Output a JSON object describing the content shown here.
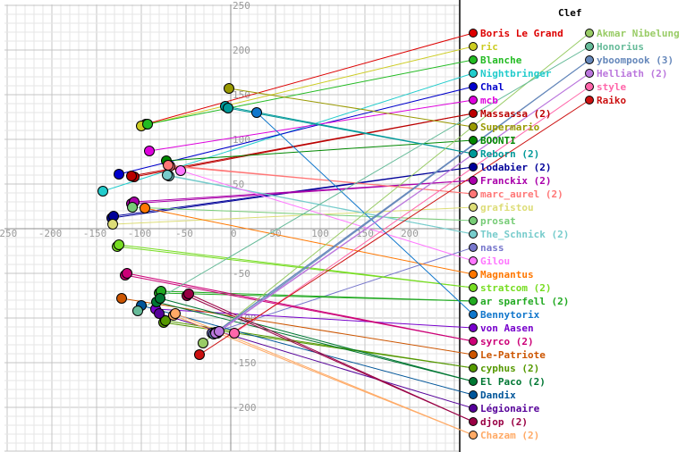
{
  "chart_data": {
    "type": "scatter",
    "xlim": [
      -250,
      250
    ],
    "ylim": [
      -250,
      250
    ],
    "grid": true,
    "legend_title": "Clef",
    "legend_position": "right",
    "x_ticks": [
      -250,
      -200,
      -150,
      -100,
      -50,
      0,
      50,
      100,
      150,
      200
    ],
    "y_ticks": [
      250,
      200,
      150,
      100,
      50,
      -50,
      -100,
      -150,
      -200
    ],
    "series": [
      {
        "name": "Boris Le Grand",
        "color": "#dd0000",
        "points": [
          [
            -95,
            117
          ]
        ]
      },
      {
        "name": "ric",
        "color": "#cccc22",
        "points": [
          [
            -100,
            115
          ]
        ]
      },
      {
        "name": "Blanche",
        "color": "#22bb22",
        "points": [
          [
            -93,
            117
          ]
        ]
      },
      {
        "name": "Nightbringer",
        "color": "#22cccc",
        "points": [
          [
            -143,
            42
          ]
        ]
      },
      {
        "name": "Chal",
        "color": "#0000cc",
        "points": [
          [
            -125,
            61
          ]
        ]
      },
      {
        "name": "mcb",
        "color": "#dd00dd",
        "points": [
          [
            -91,
            87
          ]
        ]
      },
      {
        "name": "Massassa (2)",
        "color": "#bb0000",
        "points": [
          [
            -108,
            58
          ],
          [
            -111,
            59
          ]
        ]
      },
      {
        "name": "Supermario",
        "color": "#999900",
        "points": [
          [
            -2,
            157
          ]
        ]
      },
      {
        "name": "BOONTI",
        "color": "#008800",
        "points": [
          [
            -72,
            76
          ]
        ]
      },
      {
        "name": "Reborn (2)",
        "color": "#009999",
        "points": [
          [
            -6,
            137
          ],
          [
            -3,
            135
          ]
        ]
      },
      {
        "name": "lodabier (2)",
        "color": "#000099",
        "points": [
          [
            -133,
            12
          ],
          [
            -131,
            14
          ]
        ]
      },
      {
        "name": "Franckix (2)",
        "color": "#aa00aa",
        "points": [
          [
            -111,
            28
          ],
          [
            -108,
            30
          ]
        ]
      },
      {
        "name": "marc_aurel (2)",
        "color": "#ff7777",
        "points": [
          [
            -68,
            70
          ],
          [
            -70,
            71
          ]
        ]
      },
      {
        "name": "grafistou",
        "color": "#dddd77",
        "points": [
          [
            -132,
            5
          ]
        ]
      },
      {
        "name": "prosat",
        "color": "#77cc77",
        "points": [
          [
            -110,
            24
          ]
        ]
      },
      {
        "name": "The_Schnick (2)",
        "color": "#77cccc",
        "points": [
          [
            -69,
            59
          ],
          [
            -71,
            60
          ]
        ]
      },
      {
        "name": "nass",
        "color": "#7777cc",
        "points": [
          [
            -21,
            -117
          ]
        ]
      },
      {
        "name": "Gilou",
        "color": "#ff77ff",
        "points": [
          [
            -56,
            65
          ]
        ]
      },
      {
        "name": "Magnantus",
        "color": "#ff7700",
        "points": [
          [
            -96,
            23
          ]
        ]
      },
      {
        "name": "stratcom (2)",
        "color": "#77dd22",
        "points": [
          [
            -127,
            -20
          ],
          [
            -125,
            -18
          ]
        ]
      },
      {
        "name": "ar sparfell (2)",
        "color": "#22aa22",
        "points": [
          [
            -80,
            -72
          ],
          [
            -78,
            -70
          ]
        ]
      },
      {
        "name": "Bennytorix",
        "color": "#1177cc",
        "points": [
          [
            29,
            130
          ]
        ]
      },
      {
        "name": "von Aasen",
        "color": "#7700cc",
        "points": [
          [
            -84,
            -90
          ]
        ]
      },
      {
        "name": "syrco (2)",
        "color": "#cc0077",
        "points": [
          [
            -118,
            -52
          ],
          [
            -116,
            -50
          ]
        ]
      },
      {
        "name": "Le-Patriote",
        "color": "#cc5500",
        "points": [
          [
            -122,
            -78
          ]
        ]
      },
      {
        "name": "cyphus (2)",
        "color": "#559900",
        "points": [
          [
            -75,
            -105
          ],
          [
            -73,
            -103
          ]
        ]
      },
      {
        "name": "El Paco (2)",
        "color": "#007733",
        "points": [
          [
            -83,
            -82
          ],
          [
            -79,
            -78
          ]
        ]
      },
      {
        "name": "Dandix",
        "color": "#005599",
        "points": [
          [
            -100,
            -86
          ]
        ]
      },
      {
        "name": "Légionaire",
        "color": "#550099",
        "points": [
          [
            -80,
            -95
          ]
        ]
      },
      {
        "name": "djop (2)",
        "color": "#990044",
        "points": [
          [
            -49,
            -75
          ],
          [
            -47,
            -73
          ]
        ]
      },
      {
        "name": "Chazam (2)",
        "color": "#ffaa66",
        "points": [
          [
            -64,
            -97
          ],
          [
            -62,
            -95
          ]
        ]
      },
      {
        "name": "Akmar Nibelung",
        "color": "#99cc66",
        "points": [
          [
            -31,
            -128
          ]
        ]
      },
      {
        "name": "Honorius",
        "color": "#66bb99",
        "points": [
          [
            -104,
            -92
          ]
        ]
      },
      {
        "name": "yboompook (3)",
        "color": "#6688bb",
        "points": [
          [
            -19,
            -118
          ],
          [
            -17,
            -116
          ],
          [
            -15,
            -117
          ]
        ]
      },
      {
        "name": "Helliath (2)",
        "color": "#bb77dd",
        "points": [
          [
            -17,
            -117
          ],
          [
            -13,
            -115
          ]
        ]
      },
      {
        "name": "style",
        "color": "#ff66aa",
        "points": [
          [
            4,
            -117
          ]
        ]
      },
      {
        "name": "Raiko",
        "color": "#cc1111",
        "points": [
          [
            -35,
            -141
          ]
        ]
      }
    ]
  }
}
